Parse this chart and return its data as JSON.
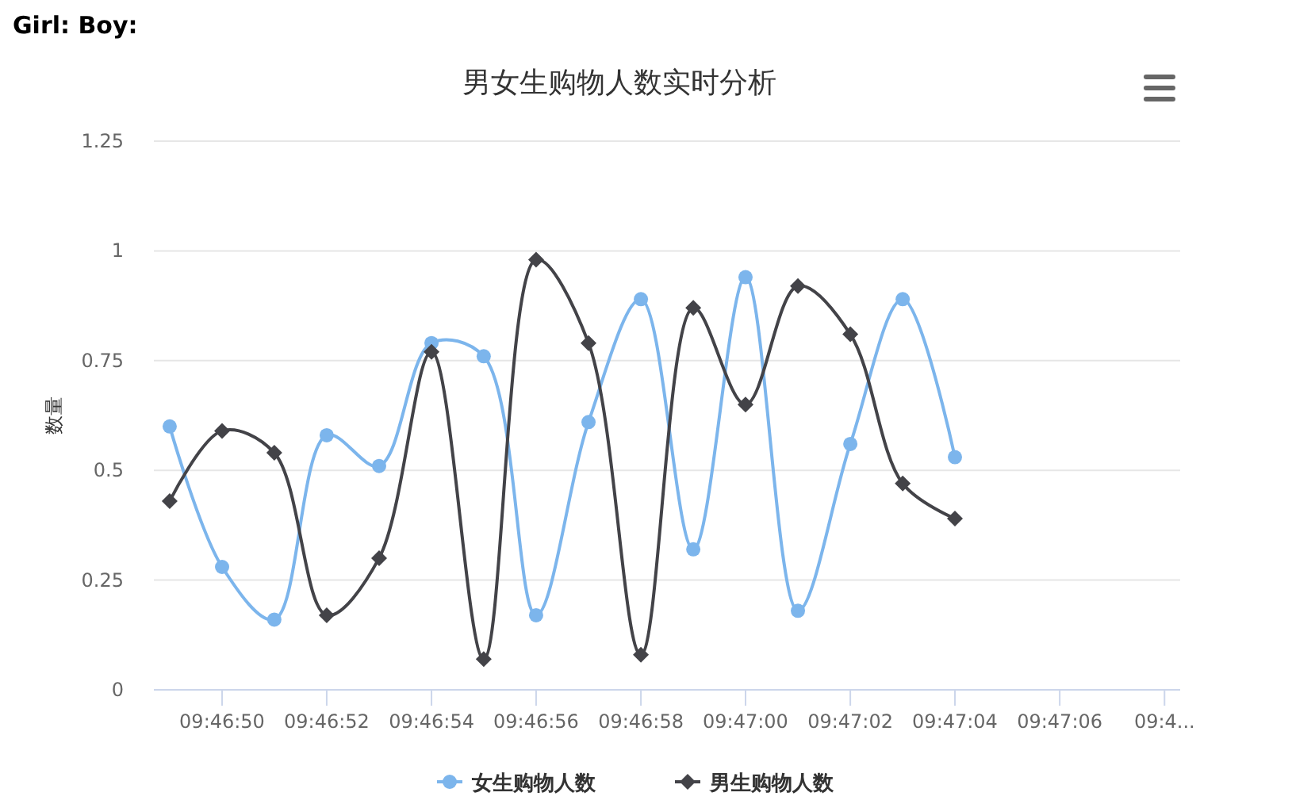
{
  "chart_data": {
    "type": "line",
    "title": "男女生购物人数实时分析",
    "ylabel": "数量",
    "annotations": [
      "Girl: Boy:"
    ],
    "x": [
      9.780278,
      9.780556,
      9.780833,
      9.781111,
      9.781389,
      9.781667,
      9.781944,
      9.782222,
      9.7825,
      9.782778,
      9.783056,
      9.783333,
      9.783611,
      9.783889,
      9.784167,
      9.784444
    ],
    "series": [
      {
        "name": "女生购物人数",
        "color": "#7cb5ec",
        "marker": "circle",
        "values": [
          0.6,
          0.28,
          0.16,
          0.58,
          0.51,
          0.79,
          0.76,
          0.17,
          0.61,
          0.89,
          0.32,
          0.94,
          0.18,
          0.56,
          0.89,
          0.53
        ]
      },
      {
        "name": "男生购物人数",
        "color": "#434348",
        "marker": "diamond",
        "values": [
          0.43,
          0.59,
          0.54,
          0.17,
          0.3,
          0.77,
          0.07,
          0.98,
          0.79,
          0.08,
          0.87,
          0.65,
          0.92,
          0.81,
          0.47,
          0.39
        ]
      }
    ],
    "xlim": [
      9.780194,
      9.785639
    ],
    "xticks": [
      {
        "value": 9.780556,
        "label": "09:46:50"
      },
      {
        "value": 9.781111,
        "label": "09:46:52"
      },
      {
        "value": 9.781667,
        "label": "09:46:54"
      },
      {
        "value": 9.782222,
        "label": "09:46:56"
      },
      {
        "value": 9.782778,
        "label": "09:46:58"
      },
      {
        "value": 9.783333,
        "label": "09:47:00"
      },
      {
        "value": 9.783889,
        "label": "09:47:02"
      },
      {
        "value": 9.784444,
        "label": "09:47:04"
      },
      {
        "value": 9.785,
        "label": "09:47:06"
      },
      {
        "value": 9.785556,
        "label": "09:4..."
      }
    ],
    "ylim": [
      0,
      1.25
    ],
    "yticks": [
      0,
      0.25,
      0.5,
      0.75,
      1,
      1.25
    ],
    "grid": "y",
    "legend": "bottom"
  }
}
